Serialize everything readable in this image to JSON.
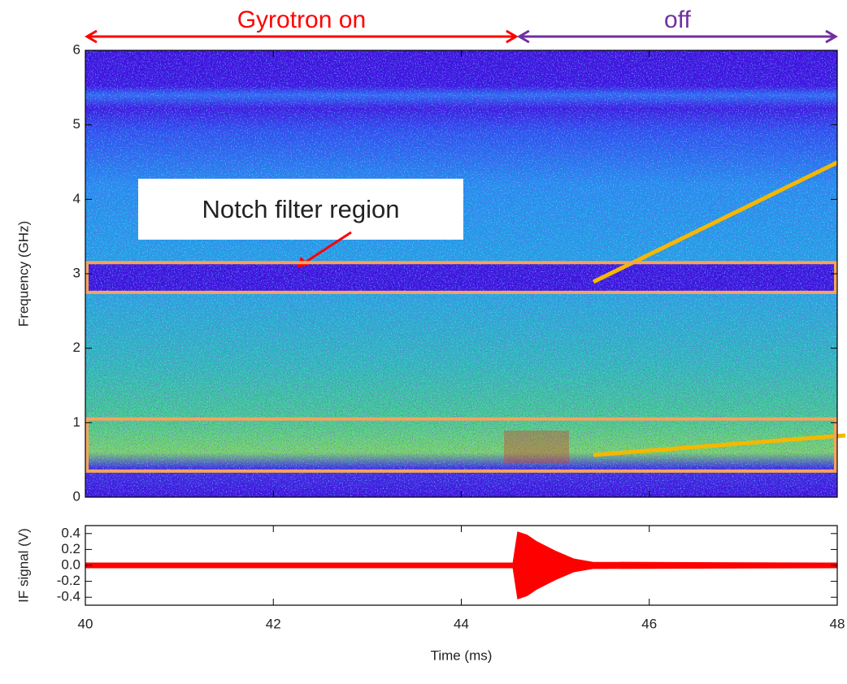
{
  "chart_data": [
    {
      "type": "heatmap",
      "ylabel": "Frequency (GHz)",
      "xlim": [
        40,
        48
      ],
      "xticks": [
        40,
        42,
        44,
        46,
        48
      ],
      "ylim": [
        0,
        6
      ],
      "yticks": [
        0,
        1,
        2,
        3,
        4,
        5,
        6
      ],
      "annotations": [
        {
          "text": "Gyrotron on",
          "color": "#ff0000",
          "x": [
            40,
            44.6
          ]
        },
        {
          "text": "off",
          "color": "#7030a0",
          "x": [
            44.6,
            48
          ]
        },
        {
          "text": "Notch filter region",
          "color": "#ff0000"
        }
      ],
      "regions": [
        {
          "y": [
            2.75,
            3.15
          ],
          "color": "#f4a460"
        },
        {
          "y": [
            0.35,
            1.05
          ],
          "color": "#f4a460"
        }
      ]
    },
    {
      "type": "area",
      "xlabel": "Time (ms)",
      "ylabel": "IF signal (V)",
      "color": "#ff0000",
      "x": [
        40,
        44.55,
        44.6,
        44.7,
        44.8,
        45.0,
        45.2,
        45.4,
        48
      ],
      "values": [
        0.03,
        0.03,
        0.42,
        0.38,
        0.3,
        0.18,
        0.08,
        0.04,
        0.03
      ],
      "xlim": [
        40,
        48
      ],
      "xticks": [
        40,
        42,
        44,
        46,
        48
      ],
      "ylim": [
        -0.5,
        0.5
      ],
      "yticks": [
        0.4,
        0.2,
        {
          "value": 0,
          "label": "0.0"
        },
        -0.2,
        -0.4
      ]
    }
  ]
}
